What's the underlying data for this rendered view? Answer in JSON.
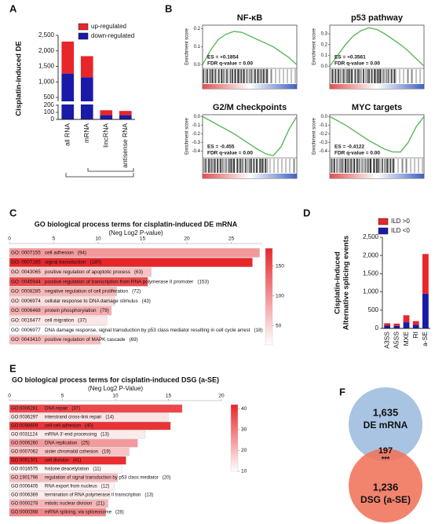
{
  "chart_data": [
    {
      "panel": "A",
      "type": "stacked_bar",
      "ylabel": "Cisplatin-induced DE",
      "categories": [
        "all RNA",
        "mRNA",
        "lincRNA",
        "antisense RNA"
      ],
      "series": [
        {
          "name": "up-regulated",
          "color": "#e8262a",
          "values": [
            1030,
            680,
            70,
            60
          ]
        },
        {
          "name": "down-regulated",
          "color": "#1a1aa8",
          "values": [
            1270,
            1150,
            60,
            60
          ]
        }
      ],
      "ylim": [
        0,
        2500
      ],
      "ybreak": [
        200,
        400
      ],
      "yticks": [
        0,
        100,
        200,
        500,
        {
          "value": 1000,
          "label": "1,000"
        },
        {
          "value": 1500,
          "label": "1,500"
        },
        {
          "value": 2000,
          "label": "2,000"
        },
        {
          "value": 2500,
          "label": "2,500"
        }
      ]
    },
    {
      "panel": "B",
      "type": "gsea",
      "ylabel": "Enrichment score",
      "color": "#5cb85c",
      "plots": [
        {
          "title": "NF-κB",
          "es": "ES = +0.1854",
          "fdr": "FDR q-value = 0.00",
          "ylim": [
            -0.02,
            0.22
          ],
          "yticks": [
            {
              "value": 0,
              "label": "0.0"
            },
            0.1,
            0.2
          ],
          "values": [
            0,
            0.08,
            0.14,
            0.17,
            0.185,
            0.18,
            0.16,
            0.14,
            0.12,
            0.1,
            0.07,
            0.04,
            0
          ]
        },
        {
          "title": "p53 pathway",
          "es": "ES = +0.3561",
          "fdr": "FDR q-value = 0.00",
          "ylim": [
            -0.02,
            0.38
          ],
          "yticks": [
            {
              "value": 0,
              "label": "0.0"
            },
            0.1,
            0.2,
            0.3
          ],
          "values": [
            0,
            0.1,
            0.2,
            0.28,
            0.33,
            0.356,
            0.34,
            0.3,
            0.25,
            0.2,
            0.14,
            0.07,
            0
          ]
        },
        {
          "title": "G2/M checkpoints",
          "es": "ES = -0.455",
          "fdr": "FDR q-value = 0.00",
          "ylim": [
            -0.48,
            0.02
          ],
          "yticks": [
            {
              "value": 0,
              "label": "0.0"
            },
            -0.1,
            -0.2,
            -0.3,
            -0.4
          ],
          "values": [
            0,
            -0.05,
            -0.1,
            -0.15,
            -0.2,
            -0.26,
            -0.32,
            -0.38,
            -0.43,
            -0.455,
            -0.35,
            -0.15,
            0
          ]
        },
        {
          "title": "MYC targets",
          "es": "ES = -0.4122",
          "fdr": "FDR q-value = 0.00",
          "ylim": [
            -0.48,
            0.02
          ],
          "yticks": [
            {
              "value": 0,
              "label": "0.0"
            },
            -0.1,
            -0.2,
            -0.3,
            -0.4
          ],
          "values": [
            0,
            -0.05,
            -0.1,
            -0.16,
            -0.22,
            -0.28,
            -0.33,
            -0.38,
            -0.41,
            -0.412,
            -0.3,
            -0.12,
            0
          ]
        }
      ]
    },
    {
      "panel": "C",
      "type": "go_bar",
      "title": "GO biological process terms for cisplatin-induced DE mRNA",
      "subtitle": "(Neg Log2 P-value)",
      "color": "#e8262a",
      "xlim": [
        0,
        28.5
      ],
      "xticks": [
        0,
        5,
        10,
        15,
        20,
        25
      ],
      "ids": [
        "GO: 0007155",
        "GO: 0007165",
        "GO: 0043065",
        "GO: 0045944",
        "GO: 0008285",
        "GO: 0006974",
        "GO: 0006468",
        "GO: 0016477",
        "GO: 0006977",
        "GO: 0043410"
      ],
      "terms": [
        "cell adhesion",
        "signal transduction",
        "positive regulation of apoptotic process",
        "positive regulation of transcription from RNA polymerase II promoter",
        "negative regulation of cell proliferation",
        "cellular response to DNA damage stimulus",
        "protein phosphorylation",
        "cell migration",
        "DNA damage response, signal transduction by p53 class mediator resulting in cell cycle arrest",
        "positive regulation of MAPK cascade"
      ],
      "counts": [
        94,
        180,
        63,
        153,
        72,
        43,
        79,
        37,
        18,
        69
      ],
      "count_labels": [
        "(94)",
        "(180)",
        "(63)",
        "(153)",
        "(72)",
        "(43)",
        "(79)",
        "(37)",
        "(18)",
        "(69)"
      ],
      "values": [
        28.2,
        27.4,
        16,
        15.6,
        12.1,
        11.9,
        11.5,
        11,
        10.8,
        10.3
      ],
      "clim": [
        18,
        180
      ],
      "cticks": [
        50,
        100,
        150
      ]
    },
    {
      "panel": "D",
      "type": "stacked_bar",
      "ylabel": [
        "Cisplatin-induced",
        "Alternative splicing events"
      ],
      "categories": [
        "A3SS",
        "A5SS",
        "MXE",
        "RI",
        "a-SE"
      ],
      "series": [
        {
          "name": "ILD >0",
          "color": "#e8262a",
          "values": [
            65,
            60,
            190,
            100,
            1090
          ]
        },
        {
          "name": "ILD <0",
          "color": "#1a1aa8",
          "values": [
            75,
            70,
            170,
            100,
            950
          ]
        }
      ],
      "ylim": [
        0,
        2500
      ],
      "yticks": [
        0,
        500,
        {
          "value": 1000,
          "label": "1,000"
        },
        {
          "value": 1500,
          "label": "1,500"
        },
        {
          "value": 2000,
          "label": "2,000"
        },
        {
          "value": 2500,
          "label": "2,500"
        }
      ]
    },
    {
      "panel": "E",
      "type": "go_bar",
      "title": "GO biological process terms for cisplatin-induced DSG (a-SE)",
      "subtitle": "(Neg Log2 P-Value)",
      "color": "#e8262a",
      "xlim": [
        0,
        20
      ],
      "xticks": [
        0,
        5,
        10,
        15,
        20
      ],
      "ids": [
        "GO:0006281",
        "GO:0036297",
        "GO:0098609",
        "GO:0031124",
        "GO:0006260",
        "GO:0007062",
        "GO:0051301",
        "GO:0016575",
        "GO:1901796",
        "GO:0006405",
        "GO:0006369",
        "GO:0000278",
        "GO:0000398"
      ],
      "terms": [
        "DNA repair",
        "interstrand cross-link repair",
        "cell-cell adhesion",
        "mRNA 3'-end processing",
        "DNA replication",
        "sister chromatid cohesion",
        "cell division",
        "histone deacetylation",
        "regulation of signal transduction by p53 class mediator",
        "RNA export from nucleus",
        "termination of RNA polymerase II transcription",
        "mitotic nuclear division",
        "mRNA splicing, via spliceosome"
      ],
      "counts": [
        37,
        14,
        40,
        13,
        25,
        19,
        41,
        11,
        20,
        12,
        13,
        21,
        28
      ],
      "count_labels": [
        "(37)",
        "(14)",
        "(40)",
        "(13)",
        "(25)",
        "(19)",
        "(41)",
        "(11)",
        "(20)",
        "(12)",
        "(13)",
        "(21)",
        "(28)"
      ],
      "values": [
        16.3,
        15,
        15.2,
        12.8,
        12.1,
        11.3,
        11,
        10.6,
        10.2,
        9.9,
        9.5,
        9.3,
        9.1
      ],
      "clim": [
        10,
        42
      ],
      "cticks": [
        10,
        20,
        30,
        40
      ]
    },
    {
      "panel": "F",
      "type": "venn",
      "sets": [
        "DE mRNA",
        "DSG (a-SE)"
      ],
      "colors": [
        "#a8c4e2",
        "#f0735a"
      ],
      "values": [
        1635,
        1236
      ],
      "value_labels": [
        "1,635",
        "1,236"
      ],
      "overlap": 197,
      "overlap_annotation": "***"
    }
  ]
}
